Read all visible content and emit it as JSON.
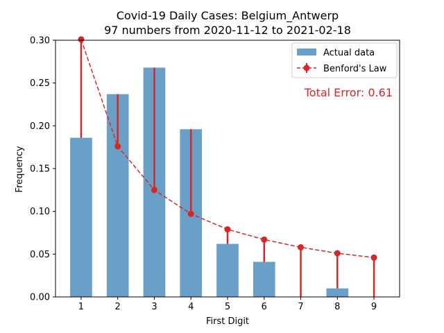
{
  "chart_data": {
    "type": "bar",
    "title": "Covid-19 Daily Cases: Belgium_Antwerp",
    "subtitle": "97 numbers from 2020-11-12 to 2021-02-18",
    "xlabel": "First Digit",
    "ylabel": "Frequency",
    "categories": [
      "1",
      "2",
      "3",
      "4",
      "5",
      "6",
      "7",
      "8",
      "9"
    ],
    "ylim": [
      0,
      0.3
    ],
    "yticks": [
      "0.00",
      "0.05",
      "0.10",
      "0.15",
      "0.20",
      "0.25",
      "0.30"
    ],
    "legend_position": "top-right",
    "series": [
      {
        "name": "Actual data",
        "kind": "bar",
        "color": "#6aa0c8",
        "values": [
          0.186,
          0.237,
          0.268,
          0.196,
          0.062,
          0.041,
          0.0,
          0.01,
          0.0
        ]
      },
      {
        "name": "Benford's Law",
        "kind": "line-errorbar",
        "color": "#d62728",
        "linestyle": "dashed",
        "values": [
          0.301,
          0.176,
          0.125,
          0.097,
          0.079,
          0.067,
          0.058,
          0.051,
          0.046
        ]
      }
    ],
    "annotation": "Total Error: 0.61",
    "annotation_color": "#d62728"
  }
}
